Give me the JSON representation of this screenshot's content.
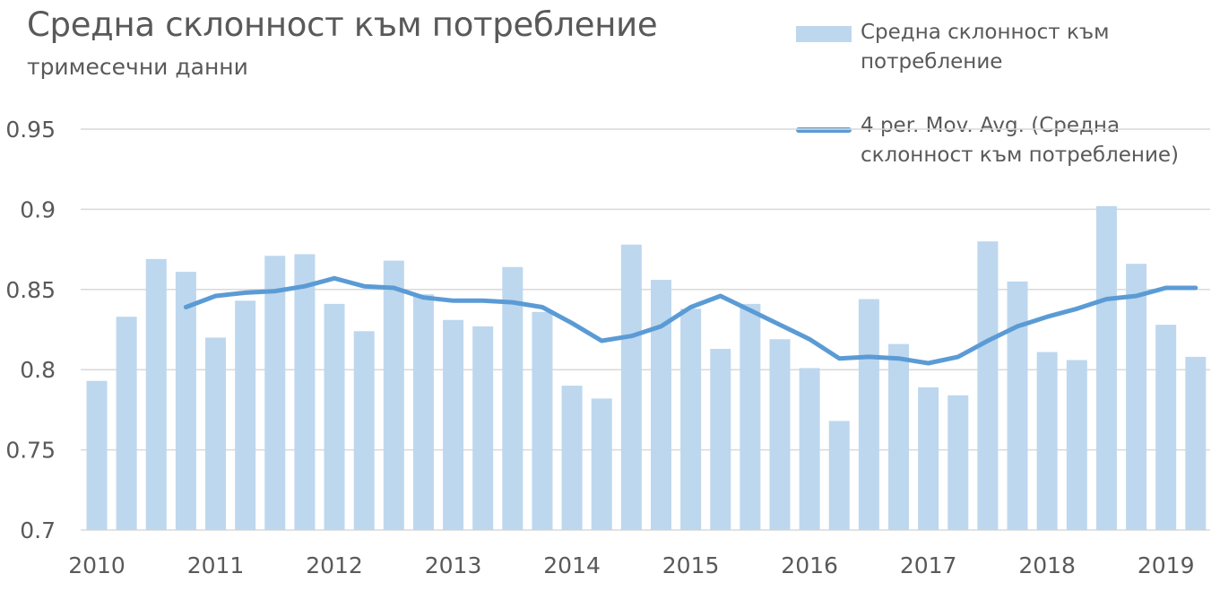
{
  "chart_data": {
    "type": "bar",
    "title": "Средна склонност към потребление",
    "subtitle": "тримесечни данни",
    "xlabel": "",
    "ylabel": "",
    "ylim": [
      0.7,
      0.95
    ],
    "yticks": [
      "0.95",
      "0.9",
      "0.85",
      "0.8",
      "0.75",
      "0.7"
    ],
    "ytick_values": [
      0.95,
      0.9,
      0.85,
      0.8,
      0.75,
      0.7
    ],
    "year_labels": [
      "2010",
      "2011",
      "2012",
      "2013",
      "2014",
      "2015",
      "2016",
      "2017",
      "2018",
      "2019"
    ],
    "grid": true,
    "legend_placement": "top-right",
    "series": [
      {
        "name": "Средна склонност към потребление",
        "kind": "bar",
        "color": "#bdd7ee",
        "values": [
          0.793,
          0.833,
          0.869,
          0.861,
          0.82,
          0.843,
          0.871,
          0.872,
          0.841,
          0.824,
          0.868,
          0.847,
          0.831,
          0.827,
          0.864,
          0.836,
          0.79,
          0.782,
          0.878,
          0.856,
          0.838,
          0.813,
          0.841,
          0.819,
          0.801,
          0.768,
          0.844,
          0.816,
          0.789,
          0.784,
          0.88,
          0.855,
          0.811,
          0.806,
          0.902,
          0.866,
          0.828,
          0.808
        ]
      },
      {
        "name": "4 per. Mov. Avg. (Средна склонност към потребление)",
        "kind": "line",
        "color": "#5b9bd5",
        "values": [
          null,
          null,
          null,
          0.839,
          0.846,
          0.848,
          0.849,
          0.852,
          0.857,
          0.852,
          0.851,
          0.845,
          0.843,
          0.843,
          0.842,
          0.839,
          0.829,
          0.818,
          0.821,
          0.827,
          0.839,
          0.846,
          0.837,
          0.828,
          0.819,
          0.807,
          0.808,
          0.807,
          0.804,
          0.808,
          0.818,
          0.827,
          0.833,
          0.838,
          0.844,
          0.846,
          0.851,
          0.851
        ]
      }
    ]
  }
}
